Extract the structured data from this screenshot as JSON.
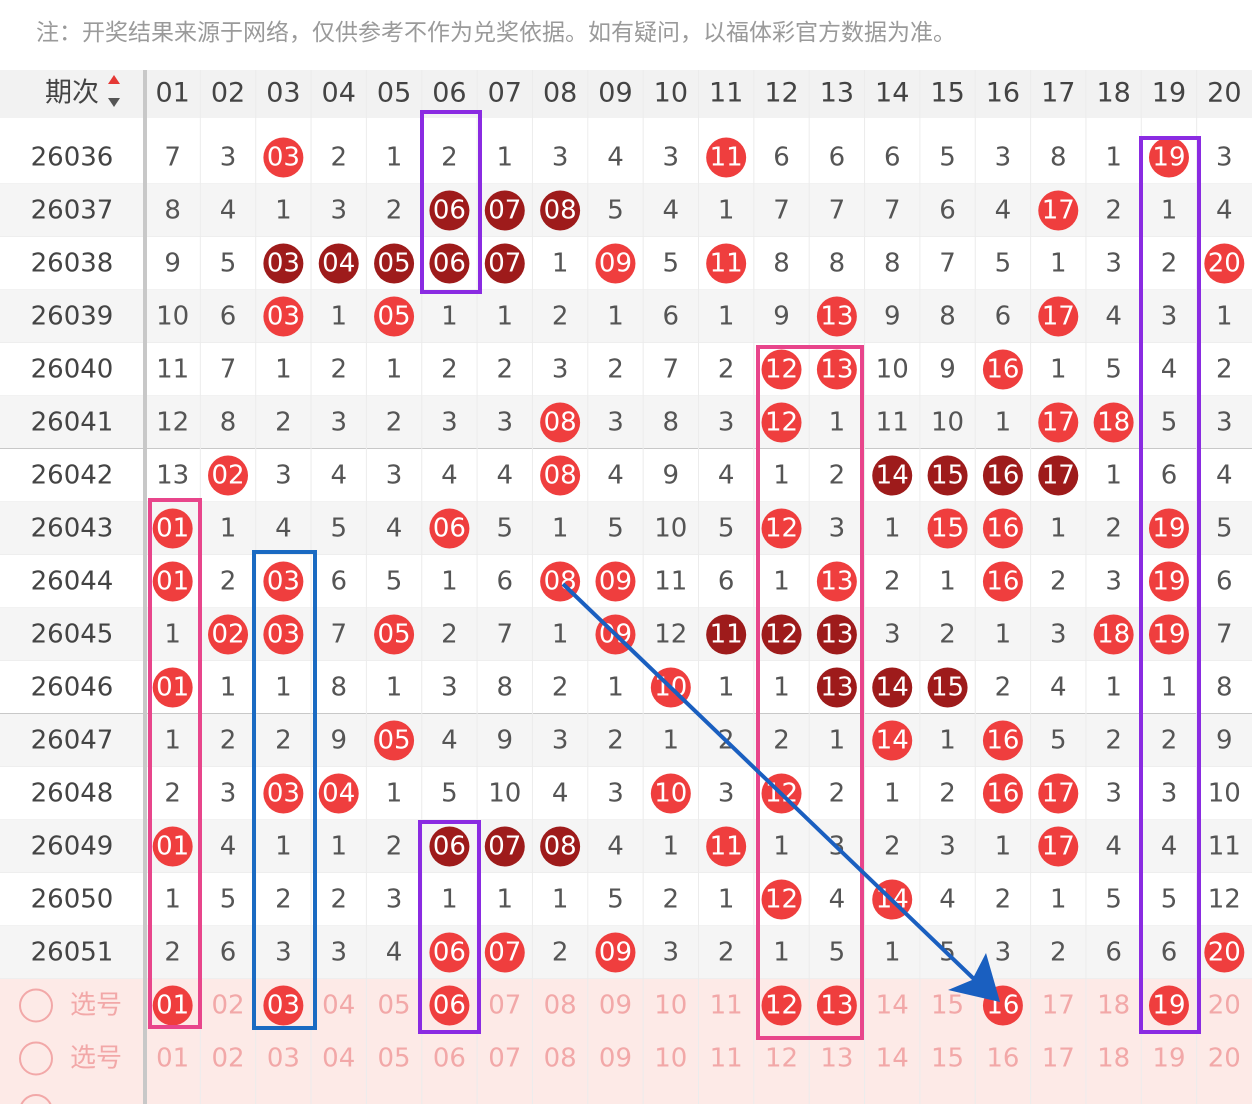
{
  "notice": "注：开奖结果来源于网络，仅供参考不作为兑奖依据。如有疑问，以福体彩官方数据为准。",
  "table": {
    "header": {
      "period": "期次",
      "columns": [
        "01",
        "02",
        "03",
        "04",
        "05",
        "06",
        "07",
        "08",
        "09",
        "10",
        "11",
        "12",
        "13",
        "14",
        "15",
        "16",
        "17",
        "18",
        "19",
        "20"
      ]
    },
    "rows": [
      {
        "period": "26036",
        "cells": [
          "7",
          "3",
          {
            "text": "03",
            "style": "red"
          },
          "2",
          "1",
          "2",
          "1",
          "3",
          "4",
          "3",
          {
            "text": "11",
            "style": "red"
          },
          "6",
          "6",
          "6",
          "5",
          "3",
          "8",
          "1",
          {
            "text": "19",
            "style": "red"
          },
          "3"
        ]
      },
      {
        "period": "26037",
        "cells": [
          "8",
          "4",
          "1",
          "3",
          "2",
          {
            "text": "06",
            "style": "dark"
          },
          {
            "text": "07",
            "style": "dark"
          },
          {
            "text": "08",
            "style": "dark"
          },
          "5",
          "4",
          "1",
          "7",
          "7",
          "7",
          "6",
          "4",
          {
            "text": "17",
            "style": "red"
          },
          "2",
          "1",
          "4"
        ]
      },
      {
        "period": "26038",
        "cells": [
          "9",
          "5",
          {
            "text": "03",
            "style": "dark"
          },
          {
            "text": "04",
            "style": "dark"
          },
          {
            "text": "05",
            "style": "dark"
          },
          {
            "text": "06",
            "style": "dark"
          },
          {
            "text": "07",
            "style": "dark"
          },
          "1",
          {
            "text": "09",
            "style": "red"
          },
          "5",
          {
            "text": "11",
            "style": "red"
          },
          "8",
          "8",
          "8",
          "7",
          "5",
          "1",
          "3",
          "2",
          {
            "text": "20",
            "style": "red"
          }
        ]
      },
      {
        "period": "26039",
        "cells": [
          "10",
          "6",
          {
            "text": "03",
            "style": "red"
          },
          "1",
          {
            "text": "05",
            "style": "red"
          },
          "1",
          "1",
          "2",
          "1",
          "6",
          "1",
          "9",
          {
            "text": "13",
            "style": "red"
          },
          "9",
          "8",
          "6",
          {
            "text": "17",
            "style": "red"
          },
          "4",
          "3",
          "1"
        ]
      },
      {
        "period": "26040",
        "cells": [
          "11",
          "7",
          "1",
          "2",
          "1",
          "2",
          "2",
          "3",
          "2",
          "7",
          "2",
          {
            "text": "12",
            "style": "red"
          },
          {
            "text": "13",
            "style": "red"
          },
          "10",
          "9",
          {
            "text": "16",
            "style": "red"
          },
          "1",
          "5",
          "4",
          "2"
        ]
      },
      {
        "period": "26041",
        "cells": [
          "12",
          "8",
          "2",
          "3",
          "2",
          "3",
          "3",
          {
            "text": "08",
            "style": "red"
          },
          "3",
          "8",
          "3",
          {
            "text": "12",
            "style": "red"
          },
          "1",
          "11",
          "10",
          "1",
          {
            "text": "17",
            "style": "red"
          },
          {
            "text": "18",
            "style": "red"
          },
          "5",
          "3"
        ]
      },
      {
        "period": "26042",
        "cells": [
          "13",
          {
            "text": "02",
            "style": "red"
          },
          "3",
          "4",
          "3",
          "4",
          "4",
          {
            "text": "08",
            "style": "red"
          },
          "4",
          "9",
          "4",
          "1",
          "2",
          {
            "text": "14",
            "style": "dark"
          },
          {
            "text": "15",
            "style": "dark"
          },
          {
            "text": "16",
            "style": "dark"
          },
          {
            "text": "17",
            "style": "dark"
          },
          "1",
          "6",
          "4"
        ]
      },
      {
        "period": "26043",
        "cells": [
          {
            "text": "01",
            "style": "red"
          },
          "1",
          "4",
          "5",
          "4",
          {
            "text": "06",
            "style": "red"
          },
          "5",
          "1",
          "5",
          "10",
          "5",
          {
            "text": "12",
            "style": "red"
          },
          "3",
          "1",
          {
            "text": "15",
            "style": "red"
          },
          {
            "text": "16",
            "style": "red"
          },
          "1",
          "2",
          {
            "text": "19",
            "style": "red"
          },
          "5"
        ]
      },
      {
        "period": "26044",
        "cells": [
          {
            "text": "01",
            "style": "red"
          },
          "2",
          {
            "text": "03",
            "style": "red"
          },
          "6",
          "5",
          "1",
          "6",
          {
            "text": "08",
            "style": "red"
          },
          {
            "text": "09",
            "style": "red"
          },
          "11",
          "6",
          "1",
          {
            "text": "13",
            "style": "red"
          },
          "2",
          "1",
          {
            "text": "16",
            "style": "red"
          },
          "2",
          "3",
          {
            "text": "19",
            "style": "red"
          },
          "6"
        ]
      },
      {
        "period": "26045",
        "cells": [
          "1",
          {
            "text": "02",
            "style": "red"
          },
          {
            "text": "03",
            "style": "red"
          },
          "7",
          {
            "text": "05",
            "style": "red"
          },
          "2",
          "7",
          "1",
          {
            "text": "09",
            "style": "red"
          },
          "12",
          {
            "text": "11",
            "style": "dark"
          },
          {
            "text": "12",
            "style": "dark"
          },
          {
            "text": "13",
            "style": "dark"
          },
          "3",
          "2",
          "1",
          "3",
          {
            "text": "18",
            "style": "red"
          },
          {
            "text": "19",
            "style": "red"
          },
          "7"
        ]
      },
      {
        "period": "26046",
        "cells": [
          {
            "text": "01",
            "style": "red"
          },
          "1",
          "1",
          "8",
          "1",
          "3",
          "8",
          "2",
          "1",
          {
            "text": "10",
            "style": "red"
          },
          "1",
          "1",
          {
            "text": "13",
            "style": "dark"
          },
          {
            "text": "14",
            "style": "dark"
          },
          {
            "text": "15",
            "style": "dark"
          },
          "2",
          "4",
          "1",
          "1",
          "8"
        ]
      },
      {
        "period": "26047",
        "cells": [
          "1",
          "2",
          "2",
          "9",
          {
            "text": "05",
            "style": "red"
          },
          "4",
          "9",
          "3",
          "2",
          "1",
          "2",
          "2",
          "1",
          {
            "text": "14",
            "style": "red"
          },
          "1",
          {
            "text": "16",
            "style": "red"
          },
          "5",
          "2",
          "2",
          "9"
        ]
      },
      {
        "period": "26048",
        "cells": [
          "2",
          "3",
          {
            "text": "03",
            "style": "red"
          },
          {
            "text": "04",
            "style": "red"
          },
          "1",
          "5",
          "10",
          "4",
          "3",
          {
            "text": "10",
            "style": "red"
          },
          "3",
          {
            "text": "12",
            "style": "red"
          },
          "2",
          "1",
          "2",
          {
            "text": "16",
            "style": "red"
          },
          {
            "text": "17",
            "style": "red"
          },
          "3",
          "3",
          "10"
        ]
      },
      {
        "period": "26049",
        "cells": [
          {
            "text": "01",
            "style": "red"
          },
          "4",
          "1",
          "1",
          "2",
          {
            "text": "06",
            "style": "dark"
          },
          {
            "text": "07",
            "style": "dark"
          },
          {
            "text": "08",
            "style": "dark"
          },
          "4",
          "1",
          {
            "text": "11",
            "style": "red"
          },
          "1",
          "3",
          "2",
          "3",
          "1",
          {
            "text": "17",
            "style": "red"
          },
          "4",
          "4",
          "11"
        ]
      },
      {
        "period": "26050",
        "cells": [
          "1",
          "5",
          "2",
          "2",
          "3",
          "1",
          "1",
          "1",
          "5",
          "2",
          "1",
          {
            "text": "12",
            "style": "red"
          },
          "4",
          {
            "text": "14",
            "style": "red"
          },
          "4",
          "2",
          "1",
          "5",
          "5",
          "12"
        ]
      },
      {
        "period": "26051",
        "cells": [
          "2",
          "6",
          "3",
          "3",
          "4",
          {
            "text": "06",
            "style": "red"
          },
          {
            "text": "07",
            "style": "red"
          },
          "2",
          {
            "text": "09",
            "style": "red"
          },
          "3",
          "2",
          "1",
          "5",
          "1",
          "5",
          "3",
          "2",
          "6",
          "6",
          {
            "text": "20",
            "style": "red"
          }
        ]
      }
    ],
    "selection": [
      {
        "label": "选号",
        "cells": [
          {
            "text": "01",
            "style": "red"
          },
          "02",
          {
            "text": "03",
            "style": "red"
          },
          "04",
          "05",
          {
            "text": "06",
            "style": "red"
          },
          "07",
          "08",
          "09",
          "10",
          "11",
          {
            "text": "12",
            "style": "red"
          },
          {
            "text": "13",
            "style": "red"
          },
          "14",
          "15",
          {
            "text": "16",
            "style": "red"
          },
          "17",
          "18",
          {
            "text": "19",
            "style": "red"
          },
          "20"
        ]
      },
      {
        "label": "选号",
        "cells": [
          "01",
          "02",
          "03",
          "04",
          "05",
          "06",
          "07",
          "08",
          "09",
          "10",
          "11",
          "12",
          "13",
          "14",
          "15",
          "16",
          "17",
          "18",
          "19",
          "20"
        ]
      }
    ]
  }
}
